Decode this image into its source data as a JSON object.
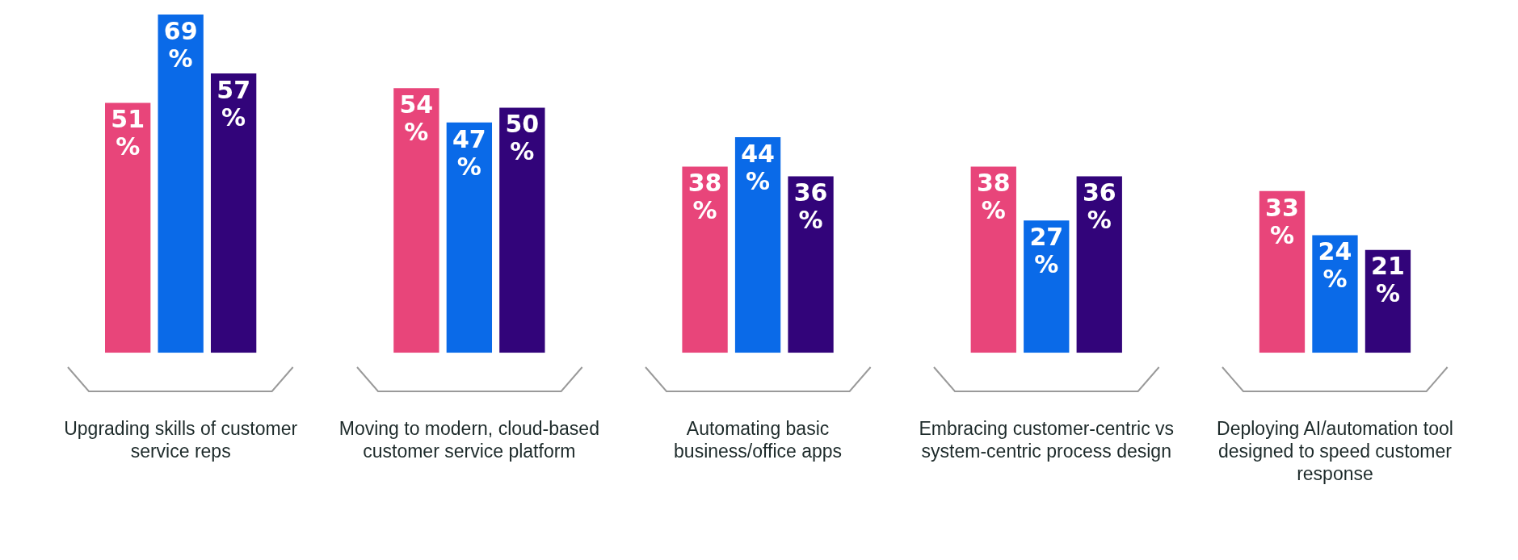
{
  "chart_data": {
    "type": "bar",
    "categories": [
      "Upgrading skills of customer service reps",
      "Moving to modern, cloud-based customer service platform",
      "Automating basic business/office apps",
      "Embracing customer-centric vs system-centric process design",
      "Deploying AI/automation tool designed to speed customer response"
    ],
    "series": [
      {
        "color": "#e8457a",
        "values": [
          51,
          54,
          38,
          38,
          33
        ],
        "value_labels": [
          "51 %",
          "54 %",
          "38 %",
          "38 %",
          "33 %"
        ]
      },
      {
        "color": "#0a6ae8",
        "values": [
          69,
          47,
          44,
          27,
          24
        ],
        "value_labels": [
          "69 %",
          "47 %",
          "44 %",
          "27 %",
          "24 %"
        ]
      },
      {
        "color": "#32047a",
        "values": [
          57,
          50,
          36,
          36,
          21
        ],
        "value_labels": [
          "57 %",
          "50 %",
          "36 %",
          "36 %",
          "21 %"
        ]
      }
    ],
    "grid": false,
    "legend": false,
    "tick_labels": "x"
  }
}
